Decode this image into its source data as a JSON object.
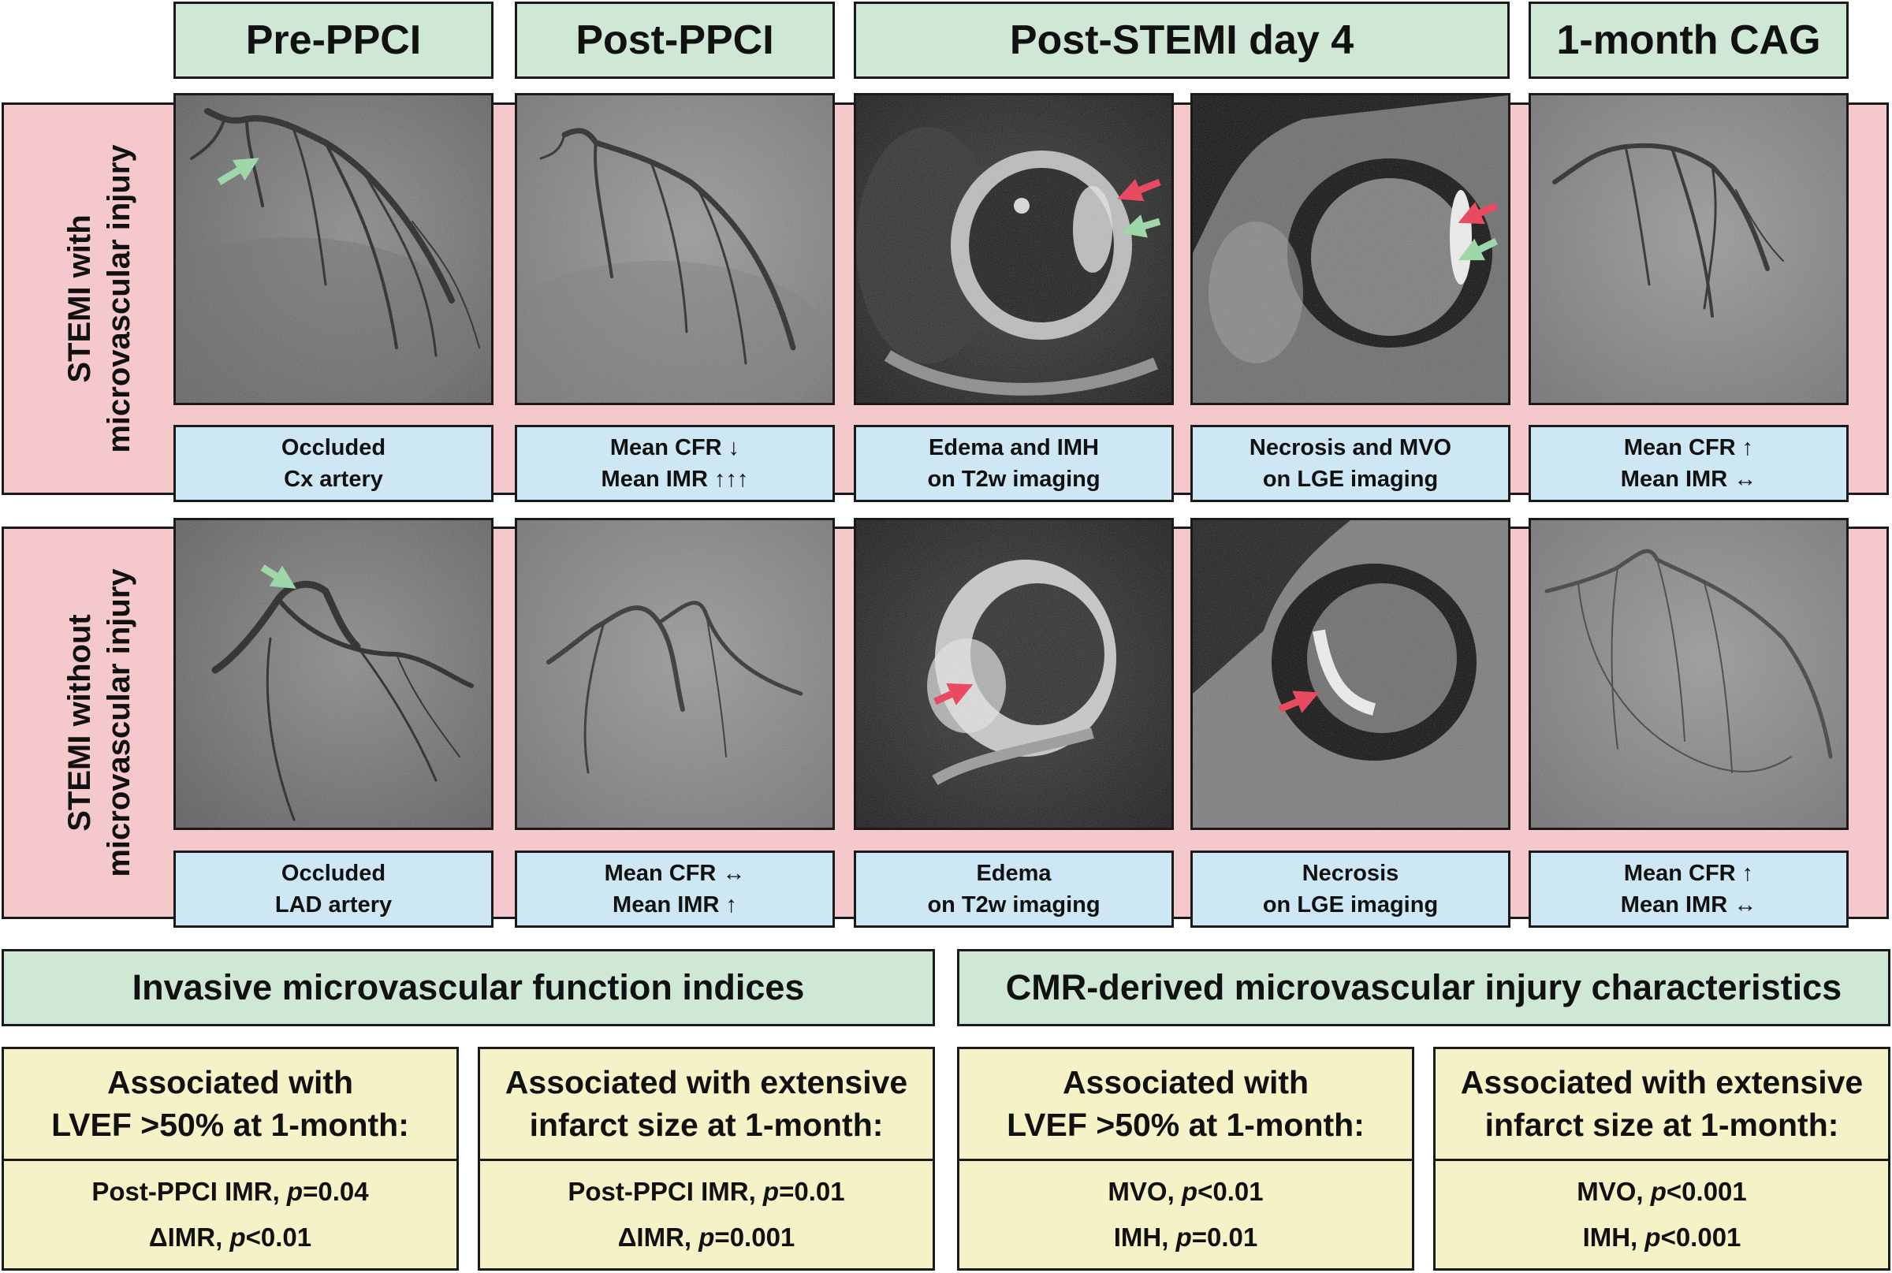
{
  "columns": [
    "Pre-PPCI",
    "Post-PPCI",
    "Post-STEMI day 4",
    "1-month CAG"
  ],
  "rows": [
    {
      "label_lines": [
        "STEMI with",
        "microvascular injury"
      ],
      "captions": [
        [
          "Occluded",
          "Cx artery"
        ],
        [
          "Mean CFR ↓",
          "Mean IMR ↑↑↑"
        ],
        [
          "Edema and IMH",
          "on T2w imaging"
        ],
        [
          "Necrosis and MVO",
          "on LGE imaging"
        ],
        [
          "Mean CFR ↑",
          "Mean IMR ↔"
        ]
      ]
    },
    {
      "label_lines": [
        "STEMI without",
        "microvascular injury"
      ],
      "captions": [
        [
          "Occluded",
          "LAD artery"
        ],
        [
          "Mean CFR ↔",
          "Mean IMR ↑"
        ],
        [
          "Edema",
          "on T2w imaging"
        ],
        [
          "Necrosis",
          "on LGE imaging"
        ],
        [
          "Mean CFR ↑",
          "Mean IMR ↔"
        ]
      ]
    }
  ],
  "sections": [
    {
      "title": "Invasive microvascular function indices",
      "boxes": [
        {
          "heading": [
            "Associated with",
            "LVEF >50% at 1-month:"
          ],
          "findings": [
            {
              "label": "Post-PPCI IMR, ",
              "stat": "p",
              "value": "=0.04"
            },
            {
              "label": "ΔIMR, ",
              "stat": "p",
              "value": "<0.01"
            }
          ]
        },
        {
          "heading": [
            "Associated with extensive",
            "infarct size at 1-month:"
          ],
          "findings": [
            {
              "label": "Post-PPCI IMR, ",
              "stat": "p",
              "value": "=0.01"
            },
            {
              "label": "ΔIMR, ",
              "stat": "p",
              "value": "=0.001"
            }
          ]
        }
      ]
    },
    {
      "title": "CMR-derived microvascular injury characteristics",
      "boxes": [
        {
          "heading": [
            "Associated with",
            "LVEF >50% at 1-month:"
          ],
          "findings": [
            {
              "label": "MVO, ",
              "stat": "p",
              "value": "<0.01"
            },
            {
              "label": "IMH, ",
              "stat": "p",
              "value": "=0.01"
            }
          ]
        },
        {
          "heading": [
            "Associated with extensive",
            "infarct size at 1-month:"
          ],
          "findings": [
            {
              "label": "MVO, ",
              "stat": "p",
              "value": "<0.001"
            },
            {
              "label": "IMH, ",
              "stat": "p",
              "value": "<0.001"
            }
          ]
        }
      ]
    }
  ],
  "colors": {
    "header_green": "#cfe8d6",
    "row_pink": "#f5c9cc",
    "caption_blue": "#cde7f5",
    "result_yellow": "#f6f2c8",
    "arrow_red": "#e84a5f",
    "arrow_green": "#9fd8a8"
  },
  "images": [
    [
      "coronary-angiogram-pre",
      "coronary-angiogram-post",
      "cmr-t2w-image",
      "cmr-lge-image",
      "coronary-angiogram-1month"
    ],
    [
      "coronary-angiogram-pre",
      "coronary-angiogram-post",
      "cmr-t2w-image",
      "cmr-lge-image",
      "coronary-angiogram-1month"
    ]
  ]
}
